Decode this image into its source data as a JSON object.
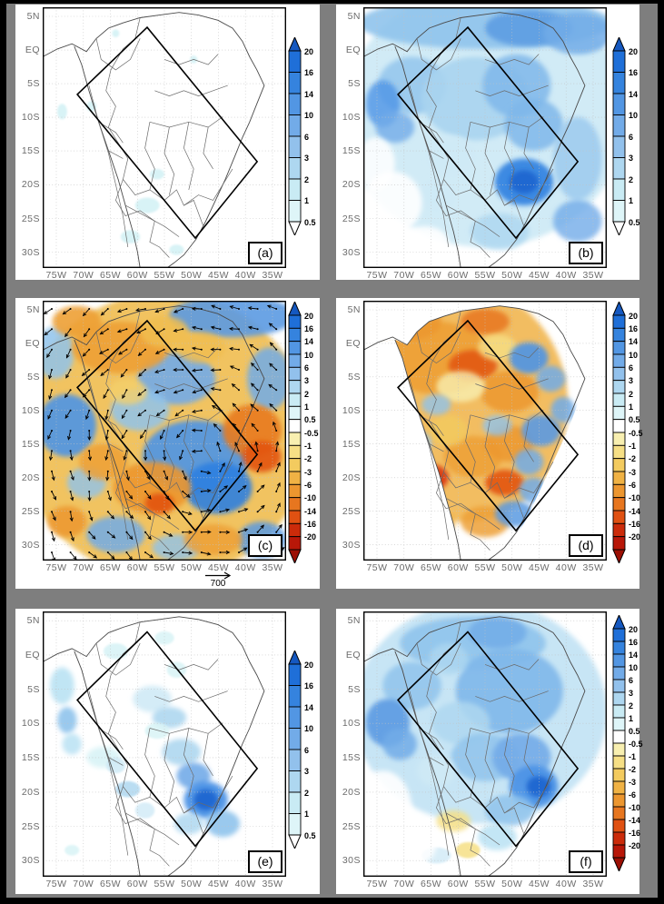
{
  "figure": {
    "background_color": "#7e7e7e",
    "border_color": "#000000",
    "panel_background": "#ffffff"
  },
  "axes": {
    "lat_labels": [
      "5N",
      "EQ",
      "5S",
      "10S",
      "15S",
      "20S",
      "25S",
      "30S"
    ],
    "lon_labels": [
      "75W",
      "70W",
      "65W",
      "60W",
      "55W",
      "50W",
      "45W",
      "40W",
      "35W"
    ]
  },
  "colorbars": {
    "positive": {
      "tick_labels": [
        "20",
        "16",
        "14",
        "10",
        "6",
        "3",
        "2",
        "1",
        "0.5"
      ],
      "segment_colors": [
        "#1f6fd8",
        "#3583de",
        "#5296e3",
        "#72abe8",
        "#92c1ec",
        "#aed7f0",
        "#c9ebf4",
        "#def5f8"
      ],
      "top_arrow_color": "#1558c0",
      "bottom_arrow_color": "#ffffff"
    },
    "diverging": {
      "tick_labels": [
        "20",
        "16",
        "14",
        "10",
        "6",
        "3",
        "2",
        "1",
        "0.5",
        "-0.5",
        "-1",
        "-2",
        "-3",
        "-6",
        "-10",
        "-14",
        "-16",
        "-20"
      ],
      "segment_colors": [
        "#1f6fd8",
        "#3583de",
        "#5296e3",
        "#72abe8",
        "#92c1ec",
        "#aed7f0",
        "#c9ebf4",
        "#def5f8",
        "#ffffff",
        "#f8efb0",
        "#f6df85",
        "#f3cb5f",
        "#f0b244",
        "#ec962f",
        "#e7761f",
        "#e05112",
        "#cb2b0a",
        "#b81708"
      ],
      "top_arrow_color": "#1558c0",
      "bottom_arrow_color": "#9c0f04"
    }
  },
  "vector_key_label": "700",
  "panels": [
    {
      "id": "a",
      "label": "(a)",
      "colorbar": "positive",
      "wind_vectors": false,
      "ocean_mask": false,
      "shading_blobs": [
        [
          43,
          76,
          5,
          3,
          "#d8f3f6",
          1
        ],
        [
          36,
          88,
          4,
          2.5,
          "#d8f3f6",
          1
        ],
        [
          55,
          93,
          3,
          2,
          "#d8f3f6",
          1
        ],
        [
          20,
          38,
          2,
          2,
          "#d8f3f6",
          1
        ],
        [
          62,
          20,
          1.5,
          1.5,
          "#d8f3f6",
          1
        ],
        [
          47,
          64,
          3,
          2,
          "#d8f3f6",
          1
        ],
        [
          8,
          40,
          2,
          3,
          "#d8f3f6",
          1
        ],
        [
          30,
          10,
          1.5,
          1.5,
          "#d8f3f6",
          1
        ]
      ]
    },
    {
      "id": "b",
      "label": "(b)",
      "colorbar": "positive",
      "wind_vectors": false,
      "ocean_mask": false,
      "shading_blobs": [
        [
          50,
          42,
          58,
          50,
          "#cfeaf6",
          0.95
        ],
        [
          50,
          6,
          52,
          10,
          "#8fc3ec",
          0.9
        ],
        [
          68,
          8,
          18,
          7,
          "#5b9ae2",
          0.85
        ],
        [
          88,
          10,
          14,
          8,
          "#72abe8",
          0.85
        ],
        [
          20,
          30,
          14,
          11,
          "#8fc3ec",
          0.8
        ],
        [
          8,
          37,
          7,
          9,
          "#4d94e6",
          0.8
        ],
        [
          13,
          46,
          8,
          6,
          "#72abe8",
          0.8
        ],
        [
          46,
          35,
          22,
          16,
          "#a8d4f0",
          0.9
        ],
        [
          63,
          30,
          14,
          12,
          "#7fb7ea",
          0.85
        ],
        [
          70,
          45,
          12,
          10,
          "#7fb7ea",
          0.85
        ],
        [
          66,
          67,
          12,
          9,
          "#2e7fe0",
          0.9
        ],
        [
          66,
          67,
          6,
          4.5,
          "#1a66d0",
          0.95
        ],
        [
          88,
          58,
          10,
          16,
          "#9ccaee",
          0.85
        ],
        [
          88,
          82,
          10,
          8,
          "#72abe8",
          0.8
        ],
        [
          56,
          86,
          12,
          7,
          "#aed7f0",
          0.85
        ],
        [
          36,
          57,
          10,
          8,
          "#cfeaf6",
          0.9
        ],
        [
          30,
          72,
          8,
          6,
          "#cfeaf6",
          0.9
        ],
        [
          12,
          75,
          12,
          12,
          "#ffffff",
          0.9
        ],
        [
          25,
          90,
          10,
          6,
          "#ffffff",
          0.9
        ],
        [
          5,
          60,
          8,
          10,
          "#ffffff",
          0.85
        ]
      ]
    },
    {
      "id": "c",
      "label": "(c)",
      "colorbar": "diverging",
      "wind_vectors": true,
      "ocean_mask": false,
      "shading_blobs": [
        [
          50,
          52,
          60,
          55,
          "#f0bd50",
          0.9
        ],
        [
          78,
          6,
          26,
          8,
          "#5b9ae2",
          0.9
        ],
        [
          55,
          30,
          16,
          10,
          "#72abe8",
          0.9
        ],
        [
          40,
          42,
          12,
          8,
          "#8fc3ec",
          0.85
        ],
        [
          10,
          48,
          12,
          12,
          "#4d94e6",
          0.9
        ],
        [
          5,
          20,
          8,
          10,
          "#8fc3ec",
          0.85
        ],
        [
          63,
          60,
          22,
          14,
          "#4d94e6",
          0.9
        ],
        [
          72,
          72,
          14,
          10,
          "#2e7fe0",
          0.9
        ],
        [
          93,
          30,
          9,
          12,
          "#72abe8",
          0.85
        ],
        [
          30,
          90,
          12,
          7,
          "#72abe8",
          0.85
        ],
        [
          55,
          95,
          10,
          5,
          "#8fc3ec",
          0.8
        ],
        [
          90,
          92,
          10,
          7,
          "#5b9ae2",
          0.85
        ],
        [
          18,
          70,
          8,
          6,
          "#8fc3ec",
          0.8
        ],
        [
          32,
          18,
          20,
          10,
          "#eda035",
          0.9
        ],
        [
          14,
          8,
          10,
          6,
          "#eda035",
          0.9
        ],
        [
          50,
          12,
          10,
          6,
          "#f0bd50",
          0.85
        ],
        [
          86,
          50,
          12,
          10,
          "#e87a20",
          0.9
        ],
        [
          90,
          60,
          8,
          6,
          "#e25312",
          0.9
        ],
        [
          45,
          72,
          16,
          10,
          "#ec962f",
          0.9
        ],
        [
          48,
          78,
          6,
          4,
          "#e25312",
          0.9
        ],
        [
          25,
          62,
          10,
          7,
          "#eda035",
          0.85
        ],
        [
          70,
          92,
          12,
          6,
          "#eda035",
          0.85
        ],
        [
          10,
          85,
          8,
          6,
          "#ec962f",
          0.85
        ],
        [
          35,
          35,
          8,
          5,
          "#f4d06a",
          0.8
        ],
        [
          65,
          18,
          10,
          6,
          "#f0bd50",
          0.8
        ]
      ]
    },
    {
      "id": "d",
      "label": "(d)",
      "colorbar": "diverging",
      "wind_vectors": false,
      "ocean_mask": true,
      "shading_blobs": [
        [
          42,
          40,
          42,
          45,
          "#f0b244",
          0.85
        ],
        [
          30,
          22,
          22,
          14,
          "#eda035",
          0.9
        ],
        [
          20,
          8,
          12,
          7,
          "#ec962f",
          0.85
        ],
        [
          50,
          8,
          10,
          5,
          "#e7761f",
          0.85
        ],
        [
          45,
          25,
          10,
          6,
          "#e25312",
          0.85
        ],
        [
          60,
          35,
          12,
          8,
          "#ec962f",
          0.85
        ],
        [
          55,
          18,
          8,
          5,
          "#f6df85",
          0.8
        ],
        [
          40,
          33,
          10,
          6,
          "#f8efb0",
          0.8
        ],
        [
          28,
          68,
          7,
          5,
          "#d8340e",
          0.9
        ],
        [
          58,
          70,
          8,
          5,
          "#e25312",
          0.9
        ],
        [
          45,
          60,
          12,
          8,
          "#eda035",
          0.85
        ],
        [
          60,
          55,
          10,
          7,
          "#ec962f",
          0.85
        ],
        [
          35,
          50,
          8,
          6,
          "#f3cb5f",
          0.8
        ],
        [
          50,
          85,
          10,
          6,
          "#eda035",
          0.85
        ],
        [
          30,
          85,
          8,
          5,
          "#f0b244",
          0.8
        ],
        [
          8,
          30,
          6,
          8,
          "#72abe8",
          0.85
        ],
        [
          12,
          47,
          8,
          7,
          "#4d94e6",
          0.9
        ],
        [
          5,
          58,
          6,
          6,
          "#72abe8",
          0.85
        ],
        [
          68,
          22,
          8,
          6,
          "#4d94e6",
          0.9
        ],
        [
          77,
          30,
          6,
          5,
          "#72abe8",
          0.85
        ],
        [
          73,
          50,
          8,
          6,
          "#5b9ae2",
          0.9
        ],
        [
          68,
          62,
          6,
          5,
          "#72abe8",
          0.85
        ],
        [
          55,
          48,
          6,
          4,
          "#8fc3ec",
          0.8
        ],
        [
          30,
          40,
          6,
          4,
          "#8fc3ec",
          0.8
        ],
        [
          62,
          82,
          8,
          5,
          "#5b9ae2",
          0.85
        ],
        [
          70,
          73,
          6,
          5,
          "#72abe8",
          0.85
        ],
        [
          22,
          55,
          6,
          5,
          "#8fc3ec",
          0.8
        ],
        [
          82,
          42,
          5,
          5,
          "#72abe8",
          0.85
        ]
      ]
    },
    {
      "id": "e",
      "label": "(e)",
      "colorbar": "positive",
      "wind_vectors": false,
      "ocean_mask": false,
      "shading_blobs": [
        [
          8,
          28,
          5,
          7,
          "#b9e2f3",
          0.9
        ],
        [
          10,
          41,
          4,
          5,
          "#8fc3ec",
          0.9
        ],
        [
          12,
          50,
          4,
          4,
          "#b9e2f3",
          0.85
        ],
        [
          25,
          55,
          7,
          4,
          "#d8f3f6",
          0.9
        ],
        [
          30,
          15,
          5,
          3,
          "#d8f3f6",
          0.9
        ],
        [
          45,
          33,
          8,
          5,
          "#cfeaf6",
          0.9
        ],
        [
          52,
          40,
          7,
          4,
          "#aed7f0",
          0.9
        ],
        [
          47,
          45,
          5,
          3,
          "#d8f3f6",
          0.85
        ],
        [
          57,
          53,
          8,
          5,
          "#aed7f0",
          0.9
        ],
        [
          62,
          62,
          7,
          5,
          "#72abe8",
          0.9
        ],
        [
          67,
          71,
          9,
          7,
          "#4d94e6",
          0.95
        ],
        [
          67,
          71,
          5,
          4,
          "#1a66d0",
          0.95
        ],
        [
          74,
          80,
          7,
          5,
          "#8fc3ec",
          0.9
        ],
        [
          60,
          80,
          6,
          4,
          "#aed7f0",
          0.85
        ],
        [
          35,
          67,
          5,
          3,
          "#aed7f0",
          0.85
        ],
        [
          30,
          58,
          4,
          3,
          "#cfeaf6",
          0.85
        ],
        [
          50,
          10,
          4,
          2.5,
          "#d8f3f6",
          0.85
        ],
        [
          12,
          90,
          3,
          2,
          "#d8f3f6",
          0.85
        ],
        [
          55,
          22,
          4,
          3,
          "#d8f3f6",
          0.85
        ],
        [
          42,
          75,
          4,
          3,
          "#cfeaf6",
          0.8
        ]
      ]
    },
    {
      "id": "f",
      "label": "(f)",
      "colorbar": "diverging",
      "wind_vectors": false,
      "ocean_mask": false,
      "shading_blobs": [
        [
          48,
          38,
          52,
          42,
          "#c4e4f4",
          0.95
        ],
        [
          45,
          12,
          30,
          10,
          "#8fc3ec",
          0.9
        ],
        [
          60,
          30,
          22,
          16,
          "#7fb7ea",
          0.9
        ],
        [
          55,
          8,
          12,
          6,
          "#72abe8",
          0.85
        ],
        [
          20,
          28,
          12,
          9,
          "#8fc3ec",
          0.85
        ],
        [
          10,
          42,
          9,
          9,
          "#5b9ae2",
          0.9
        ],
        [
          15,
          50,
          7,
          6,
          "#72abe8",
          0.85
        ],
        [
          40,
          42,
          12,
          8,
          "#aed7f0",
          0.85
        ],
        [
          50,
          55,
          14,
          9,
          "#8fc3ec",
          0.85
        ],
        [
          65,
          55,
          12,
          9,
          "#72abe8",
          0.9
        ],
        [
          70,
          66,
          10,
          8,
          "#4d94e6",
          0.95
        ],
        [
          72,
          66,
          5,
          4,
          "#1a66d0",
          0.95
        ],
        [
          60,
          75,
          10,
          6,
          "#8fc3ec",
          0.85
        ],
        [
          55,
          85,
          8,
          5,
          "#b9e2f3",
          0.85
        ],
        [
          30,
          60,
          8,
          6,
          "#cfeaf6",
          0.85
        ],
        [
          35,
          18,
          8,
          6,
          "#aed7f0",
          0.8
        ],
        [
          37,
          79,
          7,
          4,
          "#f6df85",
          0.85
        ],
        [
          43,
          90,
          5,
          3,
          "#f6df85",
          0.85
        ],
        [
          30,
          92,
          6,
          3,
          "#cfeaf6",
          0.8
        ],
        [
          8,
          75,
          12,
          15,
          "#ffffff",
          0.9
        ],
        [
          20,
          88,
          10,
          8,
          "#ffffff",
          0.85
        ]
      ]
    }
  ]
}
